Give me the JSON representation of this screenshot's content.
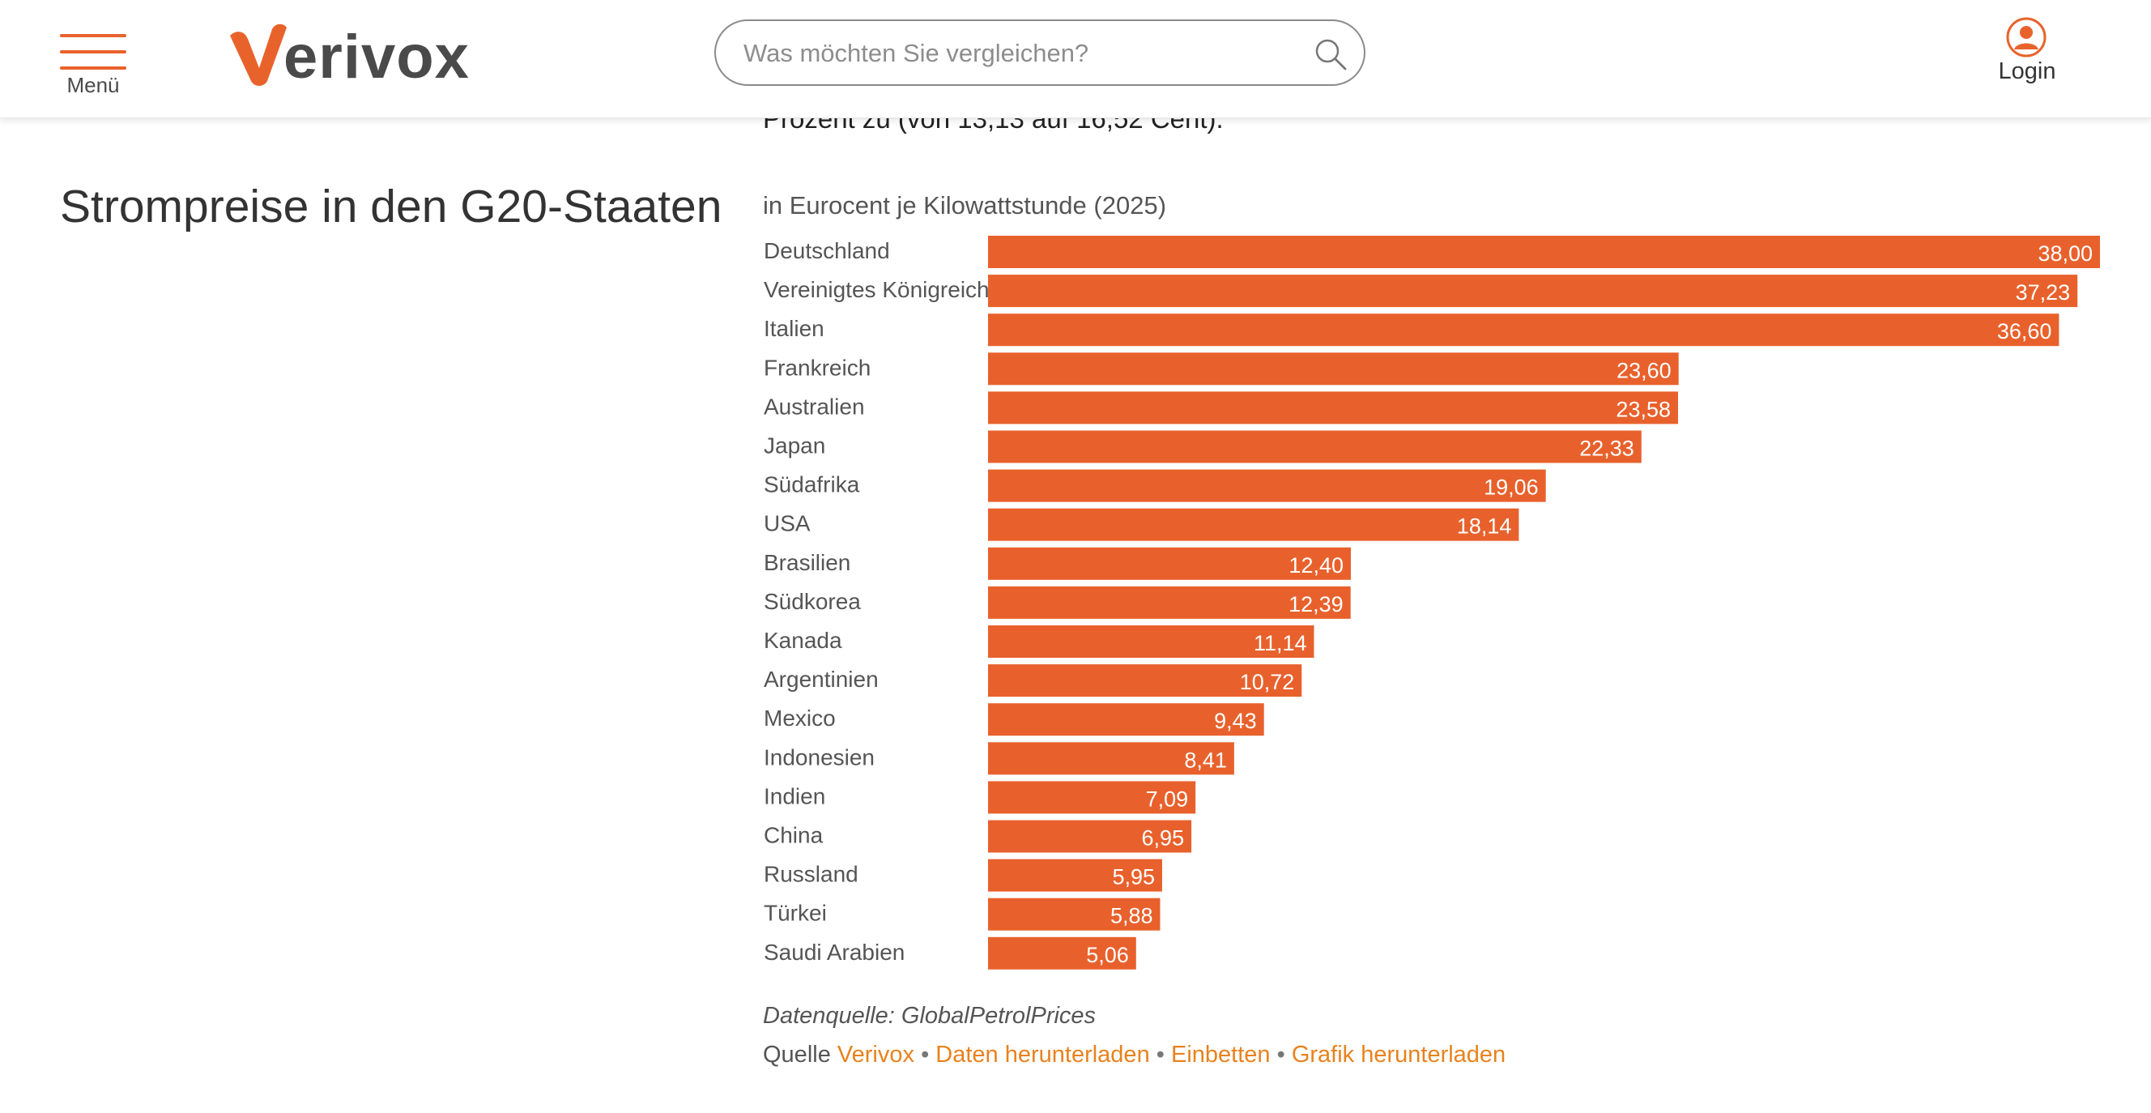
{
  "header": {
    "menu_label": "Menü",
    "logo_text": "verivox",
    "search_placeholder": "Was möchten Sie vergleichen?",
    "login_label": "Login"
  },
  "colors": {
    "accent": "#e8632c",
    "bar": "#e8612c",
    "link": "#e8821e"
  },
  "intro_text": "Prozent zu (von 13,13 auf 16,52 Cent).",
  "section_title": "Strompreise in den G20-Staaten",
  "chart_data": {
    "type": "bar",
    "orientation": "horizontal",
    "title": "",
    "subtitle": "in Eurocent je Kilowattstunde (2025)",
    "xlim": [
      0,
      38
    ],
    "grid": false,
    "categories": [
      "Deutschland",
      "Vereinigtes Königreich",
      "Italien",
      "Frankreich",
      "Australien",
      "Japan",
      "Südafrika",
      "USA",
      "Brasilien",
      "Südkorea",
      "Kanada",
      "Argentinien",
      "Mexico",
      "Indonesien",
      "Indien",
      "China",
      "Russland",
      "Türkei",
      "Saudi Arabien"
    ],
    "values": [
      38.0,
      37.23,
      36.6,
      23.6,
      23.58,
      22.33,
      19.06,
      18.14,
      12.4,
      12.39,
      11.14,
      10.72,
      9.43,
      8.41,
      7.09,
      6.95,
      5.95,
      5.88,
      5.06
    ],
    "value_labels": [
      "38,00",
      "37,23",
      "36,60",
      "23,60",
      "23,58",
      "22,33",
      "19,06",
      "18,14",
      "12,40",
      "12,39",
      "11,14",
      "10,72",
      "9,43",
      "8,41",
      "7,09",
      "6,95",
      "5,95",
      "5,88",
      "5,06"
    ]
  },
  "footer": {
    "datasource": "Datenquelle: GlobalPetrolPrices",
    "source_prefix": "Quelle",
    "source_link": "Verivox",
    "separator": "•",
    "link_download_data": "Daten herunterladen",
    "link_embed": "Einbetten",
    "link_download_graphic": "Grafik herunterladen"
  }
}
